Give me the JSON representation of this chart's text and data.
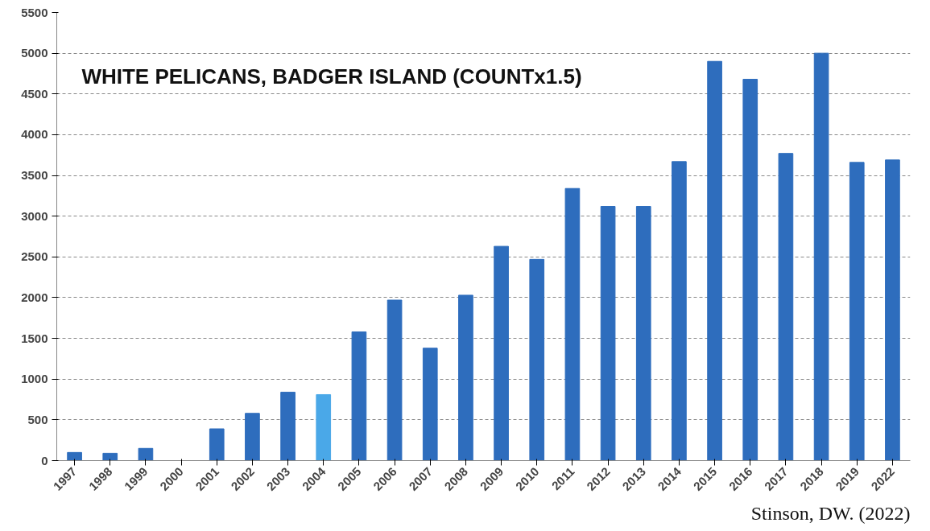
{
  "chart_data": {
    "type": "bar",
    "title": "WHITE PELICANS, BADGER ISLAND (COUNTx1.5)",
    "categories": [
      "1997",
      "1998",
      "1999",
      "2000",
      "2001",
      "2002",
      "2003",
      "2004",
      "2005",
      "2006",
      "2007",
      "2008",
      "2009",
      "2010",
      "2011",
      "2012",
      "2013",
      "2014",
      "2015",
      "2016",
      "2017",
      "2018",
      "2019",
      "2022"
    ],
    "values": [
      100,
      90,
      150,
      0,
      390,
      580,
      840,
      810,
      1580,
      1970,
      1380,
      2030,
      2630,
      2470,
      3340,
      3120,
      3120,
      3670,
      4900,
      4680,
      3770,
      5000,
      3660,
      3690
    ],
    "colors": [
      "#2e6dbd",
      "#2e6dbd",
      "#2e6dbd",
      "#2e6dbd",
      "#2e6dbd",
      "#2e6dbd",
      "#2e6dbd",
      "#4aa8e8",
      "#2e6dbd",
      "#2e6dbd",
      "#2e6dbd",
      "#2e6dbd",
      "#2e6dbd",
      "#2e6dbd",
      "#2e6dbd",
      "#2e6dbd",
      "#2e6dbd",
      "#2e6dbd",
      "#2e6dbd",
      "#2e6dbd",
      "#2e6dbd",
      "#2e6dbd",
      "#2e6dbd",
      "#2e6dbd"
    ],
    "ylim": [
      0,
      5500
    ],
    "yticks": [
      0,
      500,
      1000,
      1500,
      2000,
      2500,
      3000,
      3500,
      4000,
      4500,
      5000,
      5500
    ],
    "grid": "y",
    "annotations": [
      "Stinson, DW. (2022)"
    ]
  }
}
